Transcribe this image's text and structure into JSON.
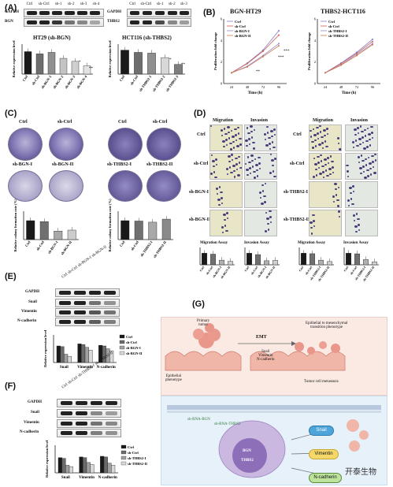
{
  "panels": {
    "A": "(A)",
    "B": "(B)",
    "C": "(C)",
    "D": "(D)",
    "E": "(E)",
    "F": "(F)",
    "G": "(G)"
  },
  "panelA": {
    "blot_left_rows": [
      "GAPDH",
      "BGN"
    ],
    "blot_left_lanes": [
      "Ctrl",
      "sh-Ctrl",
      "sh-1",
      "sh-2",
      "sh-3",
      "sh-4"
    ],
    "blot_right_rows": [
      "GAPDH",
      "THBS2"
    ],
    "blot_right_lanes": [
      "Ctrl",
      "sh-Ctrl",
      "sh-1",
      "sh-2",
      "sh-3"
    ],
    "chart_left_title": "HT29 (sh-BGN)",
    "chart_right_title": "HCT116 (sh-THBS2)",
    "ylabel": "Relative expression level",
    "stars": [
      "*",
      "**",
      "*",
      "**"
    ]
  },
  "panelB": {
    "left_title": "BGN-HT29",
    "right_title": "THBS2-HCT116",
    "ylabel": "Proliferation fold change",
    "xlabel": "Time (h)",
    "legend_left": [
      "Ctrl",
      "sh-Ctrl",
      "sh-BGN-I",
      "sh-BGN-II"
    ],
    "legend_right": [
      "Ctrl",
      "sh-Ctrl",
      "sh-THBS2-I",
      "sh-THBS2-II"
    ],
    "stars": [
      "***",
      "***",
      "**"
    ]
  },
  "panelC": {
    "labels_left": [
      "Ctrl",
      "sh-Ctrl",
      "sh-BGN-I",
      "sh-BGN-II"
    ],
    "labels_right": [
      "Ctrl",
      "sh-Ctrl",
      "sh-THBS2-I",
      "sh-THBS2-II"
    ],
    "ylabel": "Relative colony formation rate (%)"
  },
  "panelD": {
    "col_heads": [
      "Migration",
      "Invasion",
      "Migration",
      "Invasion"
    ],
    "rows_left": [
      "Ctrl",
      "sh-Ctrl",
      "sh-BGN-I",
      "sh-BGN-II"
    ],
    "rows_right": [
      "Ctrl",
      "sh-Ctrl",
      "sh-THBS2-I",
      "sh-THBS2-II"
    ],
    "chart_titles": [
      "Migration Assay",
      "Invasion Assay",
      "Migration Assay",
      "Invasion Assay"
    ],
    "ylabel": "Relative migration rate (%)"
  },
  "panelE": {
    "lanes": [
      "Ctrl",
      "sh-Ctrl",
      "sh-BGN-I",
      "sh-BGN-II"
    ],
    "rows": [
      "GAPDH",
      "Snail",
      "Vimentin",
      "N-cadherin"
    ],
    "legend": [
      "Ctrl",
      "sh-Ctrl",
      "sh-BGN-I",
      "sh-BGN-II"
    ],
    "ylabel": "Relative expression level"
  },
  "panelF": {
    "lanes": [
      "Ctrl",
      "sh-Ctrl",
      "sh-THBS2-I",
      "sh-THBS2-II"
    ],
    "rows": [
      "GAPDH",
      "Snail",
      "Vimentin",
      "N-cadherin"
    ],
    "legend": [
      "Ctrl",
      "sh-Ctrl",
      "sh-THBS2-I",
      "sh-THBS2-II"
    ],
    "ylabel": "Relative expression level"
  },
  "panelG": {
    "primary": "Primary\ntumor",
    "epithelial": "Epithelial\nphenotype",
    "emt": "EMT",
    "markers_text": "Snail\nVimentin\nN-cadherin",
    "transition": "Epithelial to mesenchymal\ntransition phenotype",
    "metastasis": "Tumor cell metastasis",
    "shbgn": "sh-RNA-BGN",
    "shthbs2": "sh-RNA-THBS2",
    "nuc_bgn": "BGN",
    "nuc_thbs2": "THBS2",
    "pills": [
      "Snail",
      "Vimentin",
      "N-cadherin"
    ]
  },
  "watermark": "开泰生物",
  "chart_data": [
    {
      "type": "bar",
      "title": "HT29 (sh-BGN)",
      "ylabel": "Relative expression level",
      "categories": [
        "Ctrl",
        "sh-Ctrl",
        "sh-BGN-1",
        "sh-BGN-2",
        "sh-BGN-3",
        "sh-BGN-4"
      ],
      "values": [
        1.5,
        1.35,
        1.45,
        1.05,
        0.85,
        0.55
      ],
      "ylim": [
        0,
        2.0
      ],
      "colors": [
        "#1a1a1a",
        "#6e6e6e",
        "#8f8f8f",
        "#c4c4c4",
        "#cfcfcf",
        "#e3e3e3"
      ]
    },
    {
      "type": "bar",
      "title": "HCT116 (sh-THBS2)",
      "ylabel": "Relative expression level",
      "categories": [
        "Ctrl",
        "sh-Ctrl",
        "sh-THBS2-1",
        "sh-THBS2-2",
        "sh-THBS2-3"
      ],
      "values": [
        1.6,
        1.45,
        1.4,
        1.1,
        0.65
      ],
      "ylim": [
        0,
        2.0
      ],
      "colors": [
        "#1a1a1a",
        "#6e6e6e",
        "#8f8f8f",
        "#d8d8d8",
        "#7d7d7d"
      ]
    },
    {
      "type": "line",
      "title": "BGN-HT29",
      "xlabel": "Time (h)",
      "ylabel": "Proliferation fold change",
      "x": [
        24,
        48,
        72,
        96
      ],
      "ylim": [
        0,
        6
      ],
      "series": [
        {
          "name": "Ctrl",
          "values": [
            1,
            1.9,
            3.1,
            4.9
          ]
        },
        {
          "name": "sh-Ctrl",
          "values": [
            1,
            1.85,
            3.0,
            4.5
          ]
        },
        {
          "name": "sh-BGN-I",
          "values": [
            1,
            1.6,
            2.6,
            3.7
          ]
        },
        {
          "name": "sh-BGN-II",
          "values": [
            1,
            1.55,
            2.5,
            3.5
          ]
        }
      ],
      "colors": [
        "#7a7fc7",
        "#d9564d",
        "#9b86c7",
        "#c97a4a"
      ]
    },
    {
      "type": "line",
      "title": "THBS2-HCT116",
      "xlabel": "Time (h)",
      "ylabel": "Proliferation fold change",
      "x": [
        24,
        48,
        72,
        96
      ],
      "ylim": [
        0,
        6
      ],
      "series": [
        {
          "name": "Ctrl",
          "values": [
            1,
            1.9,
            2.9,
            4.1
          ]
        },
        {
          "name": "sh-Ctrl",
          "values": [
            1,
            1.85,
            2.8,
            3.9
          ]
        },
        {
          "name": "sh-THBS2-I",
          "values": [
            1,
            1.75,
            2.7,
            3.7
          ]
        },
        {
          "name": "sh-THBS2-II",
          "values": [
            1,
            1.7,
            2.6,
            3.6
          ]
        }
      ],
      "colors": [
        "#7a7fc7",
        "#d9564d",
        "#9b86c7",
        "#c97a4a"
      ]
    },
    {
      "type": "bar",
      "ylabel": "Relative colony formation rate (%)",
      "categories": [
        "Ctrl",
        "sh-Ctrl",
        "sh-BGN-I",
        "sh-BGN-II"
      ],
      "values": [
        100,
        95,
        45,
        50
      ],
      "ylim": [
        0,
        150
      ],
      "colors": [
        "#1a1a1a",
        "#707070",
        "#a8a8a8",
        "#cccccc"
      ]
    },
    {
      "type": "bar",
      "ylabel": "Relative colony formation rate (%)",
      "categories": [
        "Ctrl",
        "sh-Ctrl",
        "sh-THBS2-I",
        "sh-THBS2-II"
      ],
      "values": [
        100,
        98,
        92,
        108
      ],
      "ylim": [
        0,
        150
      ],
      "colors": [
        "#1a1a1a",
        "#707070",
        "#a8a8a8",
        "#8a8a8a"
      ]
    },
    {
      "type": "bar",
      "title": "Migration Assay",
      "categories": [
        "Ctrl",
        "sh-Ctrl",
        "sh-BGN-I",
        "sh-BGN-II"
      ],
      "values": [
        100,
        92,
        40,
        30
      ],
      "ylim": [
        0,
        150
      ],
      "colors": [
        "#1a1a1a",
        "#707070",
        "#b0b0b0",
        "#d0d0d0"
      ]
    },
    {
      "type": "bar",
      "title": "Invasion Assay",
      "categories": [
        "Ctrl",
        "sh-Ctrl",
        "sh-BGN-I",
        "sh-BGN-II"
      ],
      "values": [
        100,
        88,
        35,
        38
      ],
      "ylim": [
        0,
        150
      ],
      "colors": [
        "#1a1a1a",
        "#707070",
        "#b0b0b0",
        "#d0d0d0"
      ]
    },
    {
      "type": "bar",
      "title": "Migration Assay",
      "categories": [
        "Ctrl",
        "sh-Ctrl",
        "sh-THBS2-I",
        "sh-THBS2-II"
      ],
      "values": [
        100,
        96,
        40,
        28
      ],
      "ylim": [
        0,
        150
      ],
      "colors": [
        "#1a1a1a",
        "#707070",
        "#b0b0b0",
        "#d0d0d0"
      ]
    },
    {
      "type": "bar",
      "title": "Invasion Assay",
      "categories": [
        "Ctrl",
        "sh-Ctrl",
        "sh-THBS2-I",
        "sh-THBS2-II"
      ],
      "values": [
        100,
        95,
        45,
        25
      ],
      "ylim": [
        0,
        150
      ],
      "colors": [
        "#1a1a1a",
        "#707070",
        "#b0b0b0",
        "#d0d0d0"
      ]
    },
    {
      "type": "bar",
      "ylabel": "Relative expression level",
      "categories": [
        "Snail",
        "Vimentin",
        "N-cadherin"
      ],
      "series": [
        {
          "name": "Ctrl",
          "values": [
            1.2,
            1.35,
            1.25
          ]
        },
        {
          "name": "sh-Ctrl",
          "values": [
            1.15,
            1.3,
            1.2
          ]
        },
        {
          "name": "sh-BGN-I",
          "values": [
            0.6,
            1.1,
            1.0
          ]
        },
        {
          "name": "sh-BGN-II",
          "values": [
            0.45,
            0.9,
            0.85
          ]
        }
      ],
      "ylim": [
        0,
        2
      ],
      "colors": [
        "#1a1a1a",
        "#6a6a6a",
        "#a0a0a0",
        "#d8d8d8"
      ]
    },
    {
      "type": "bar",
      "ylabel": "Relative expression level",
      "categories": [
        "Snail",
        "Vimentin",
        "N-cadherin"
      ],
      "series": [
        {
          "name": "Ctrl",
          "values": [
            1.1,
            1.15,
            1.2
          ]
        },
        {
          "name": "sh-Ctrl",
          "values": [
            1.05,
            1.1,
            1.15
          ]
        },
        {
          "name": "sh-THBS2-I",
          "values": [
            0.55,
            0.75,
            0.7
          ]
        },
        {
          "name": "sh-THBS2-II",
          "values": [
            0.45,
            0.6,
            0.55
          ]
        }
      ],
      "ylim": [
        0,
        2
      ],
      "colors": [
        "#1a1a1a",
        "#6a6a6a",
        "#a0a0a0",
        "#d8d8d8"
      ]
    }
  ]
}
